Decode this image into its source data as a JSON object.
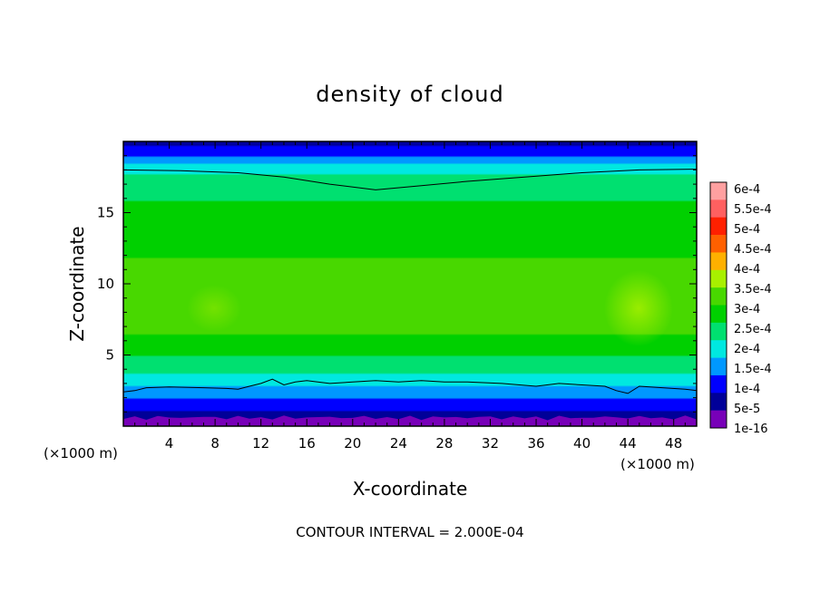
{
  "chart_data": {
    "type": "heatmap",
    "title": "density of cloud",
    "xlabel": "X-coordinate",
    "ylabel": "Z-coordinate",
    "x_unit_left": "(×1000 m)",
    "x_unit_right": "(×1000 m)",
    "footer": "CONTOUR INTERVAL = 2.000E-04",
    "xlim": [
      0,
      50
    ],
    "ylim": [
      0,
      20
    ],
    "x_ticks": [
      4,
      8,
      12,
      16,
      20,
      24,
      28,
      32,
      36,
      40,
      44,
      48
    ],
    "x_tick_labels": [
      "4",
      "8",
      "12",
      "16",
      "20",
      "24",
      "28",
      "32",
      "36",
      "40",
      "44",
      "48"
    ],
    "y_ticks": [
      5,
      10,
      15
    ],
    "y_tick_labels": [
      "5",
      "10",
      "15"
    ],
    "colorbar": {
      "labels": [
        "6e-4",
        "5.5e-4",
        "5e-4",
        "4.5e-4",
        "4e-4",
        "3.5e-4",
        "3e-4",
        "2.5e-4",
        "2e-4",
        "1.5e-4",
        "1e-4",
        "5e-5",
        "1e-16"
      ],
      "colors": [
        "#ffa0a0",
        "#ff6060",
        "#ff2000",
        "#ff6000",
        "#ffb000",
        "#a8f000",
        "#48d800",
        "#00d000",
        "#00e070",
        "#00e8e0",
        "#0098ff",
        "#0000ff",
        "#000098",
        "#7800b8"
      ]
    },
    "profile_description_z": [
      0,
      0.7,
      1.6,
      2.5,
      3.5,
      5,
      6.5,
      8.5,
      10.5,
      12.5,
      14.5,
      16.5,
      17.5,
      18.2,
      19,
      20
    ],
    "profile_values": [
      1e-16,
      3e-05,
      8e-05,
      0.00013,
      0.00019,
      0.00025,
      0.0003,
      0.00033,
      0.00032,
      0.00029,
      0.00027,
      0.00024,
      0.00021,
      0.00017,
      9e-05,
      3e-05
    ],
    "contour_upper_x": [
      0,
      5,
      10,
      14,
      18,
      22,
      26,
      30,
      35,
      40,
      45,
      50
    ],
    "contour_upper_z": [
      18.0,
      17.95,
      17.8,
      17.5,
      17.0,
      16.6,
      16.9,
      17.2,
      17.5,
      17.8,
      18.0,
      18.05
    ],
    "contour_lower_x": [
      0,
      1,
      2,
      4,
      7,
      9,
      10,
      11,
      12,
      13,
      14,
      15,
      16,
      18,
      20,
      22,
      24,
      26,
      28,
      30,
      33,
      36,
      38,
      40,
      42,
      43,
      44,
      45,
      47,
      49,
      50
    ],
    "contour_lower_z": [
      2.4,
      2.5,
      2.7,
      2.75,
      2.7,
      2.65,
      2.6,
      2.8,
      3.0,
      3.3,
      2.9,
      3.1,
      3.2,
      3.0,
      3.1,
      3.2,
      3.1,
      3.2,
      3.1,
      3.1,
      3.0,
      2.8,
      3.0,
      2.9,
      2.8,
      2.5,
      2.3,
      2.8,
      2.7,
      2.6,
      2.5
    ]
  }
}
